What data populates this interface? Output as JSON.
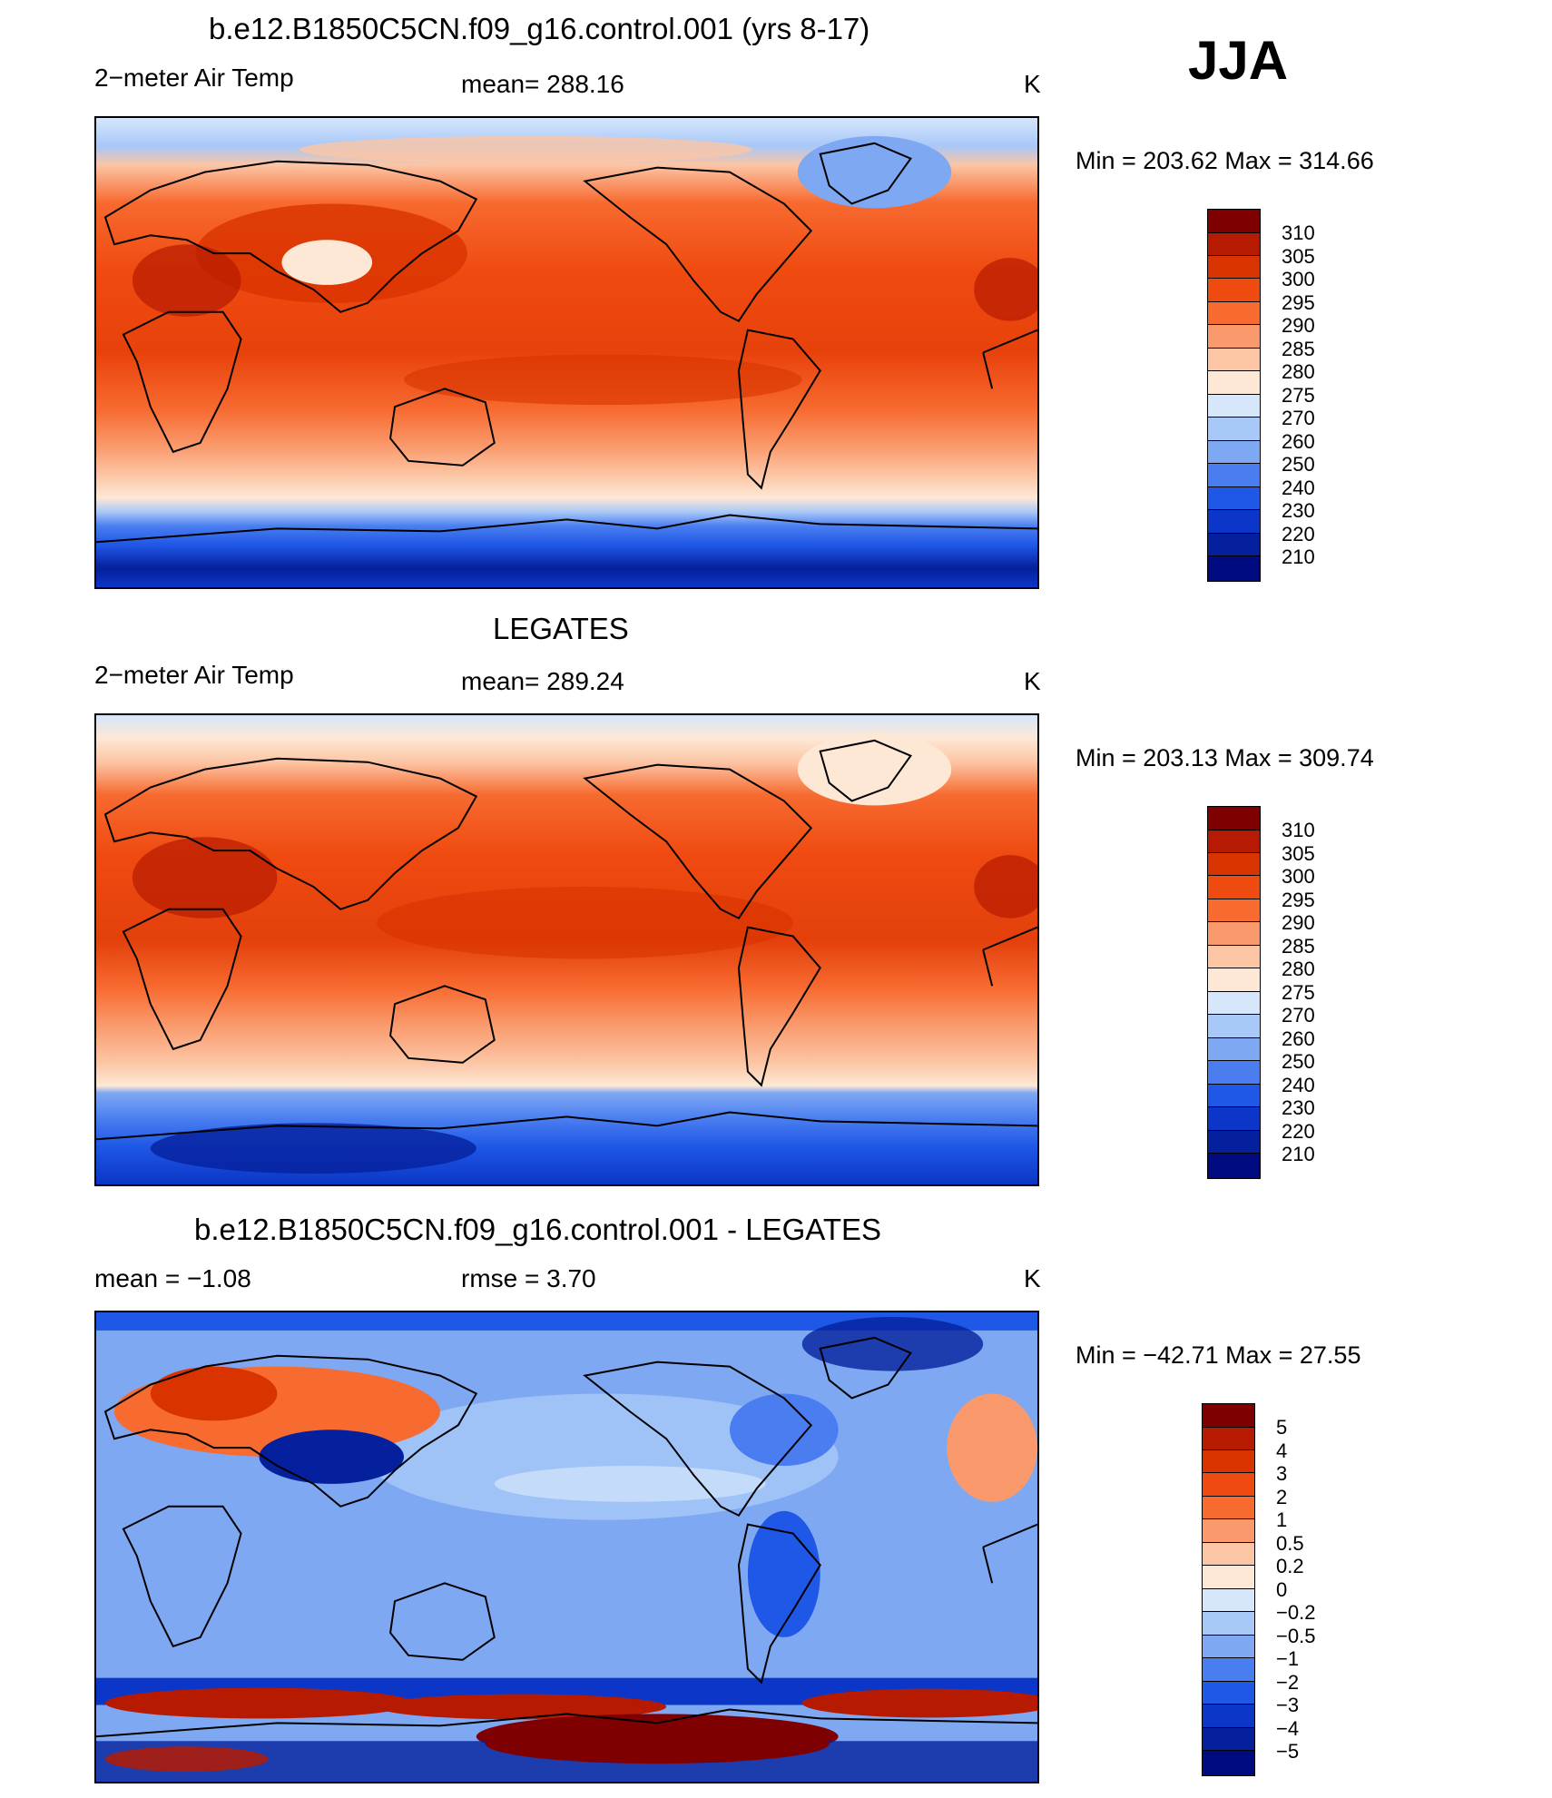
{
  "season": "JJA",
  "panels": [
    {
      "id": "model",
      "title": "b.e12.B1850C5CN.f09_g16.control.001 (yrs 8-17)",
      "variable": "2−meter Air Temp",
      "stat_text": "mean=  288.16",
      "units": "K",
      "minmax": "Min  =  203.62  Max  =  314.66",
      "legend": {
        "labels": [
          "310",
          "305",
          "300",
          "295",
          "290",
          "285",
          "280",
          "275",
          "270",
          "260",
          "250",
          "240",
          "230",
          "220",
          "210"
        ],
        "colors": [
          "#7f0000",
          "#b61a00",
          "#d93300",
          "#ef4a10",
          "#f76a30",
          "#fa9a6c",
          "#fcc5a4",
          "#fde8d6",
          "#d6e6fb",
          "#a8c8f8",
          "#7fa8f2",
          "#4a7ef0",
          "#1f57e6",
          "#0b36c7",
          "#05209c",
          "#000b80"
        ]
      }
    },
    {
      "id": "obs",
      "title": "LEGATES",
      "variable": "2−meter Air Temp",
      "stat_text": "mean=  289.24",
      "units": "K",
      "minmax": "Min  =  203.13  Max  =  309.74",
      "legend": {
        "labels": [
          "310",
          "305",
          "300",
          "295",
          "290",
          "285",
          "280",
          "275",
          "270",
          "260",
          "250",
          "240",
          "230",
          "220",
          "210"
        ],
        "colors": [
          "#7f0000",
          "#b61a00",
          "#d93300",
          "#ef4a10",
          "#f76a30",
          "#fa9a6c",
          "#fcc5a4",
          "#fde8d6",
          "#d6e6fb",
          "#a8c8f8",
          "#7fa8f2",
          "#4a7ef0",
          "#1f57e6",
          "#0b36c7",
          "#05209c",
          "#000b80"
        ]
      }
    },
    {
      "id": "diff",
      "title": "b.e12.B1850C5CN.f09_g16.control.001 - LEGATES",
      "variable": "mean  =    −1.08",
      "stat_text": "rmse  =     3.70",
      "units": "K",
      "minmax": "Min  =  −42.71  Max  =    27.55",
      "legend": {
        "labels": [
          "5",
          "4",
          "3",
          "2",
          "1",
          "0.5",
          "0.2",
          "0",
          "−0.2",
          "−0.5",
          "−1",
          "−2",
          "−3",
          "−4",
          "−5"
        ],
        "colors": [
          "#7f0000",
          "#b61a00",
          "#d93300",
          "#ef4a10",
          "#f76a30",
          "#fa9a6c",
          "#fcc5a4",
          "#fde8d6",
          "#d6e6fb",
          "#a8c8f8",
          "#7fa8f2",
          "#4a7ef0",
          "#1f57e6",
          "#0b36c7",
          "#05209c",
          "#000b80"
        ]
      }
    }
  ]
}
